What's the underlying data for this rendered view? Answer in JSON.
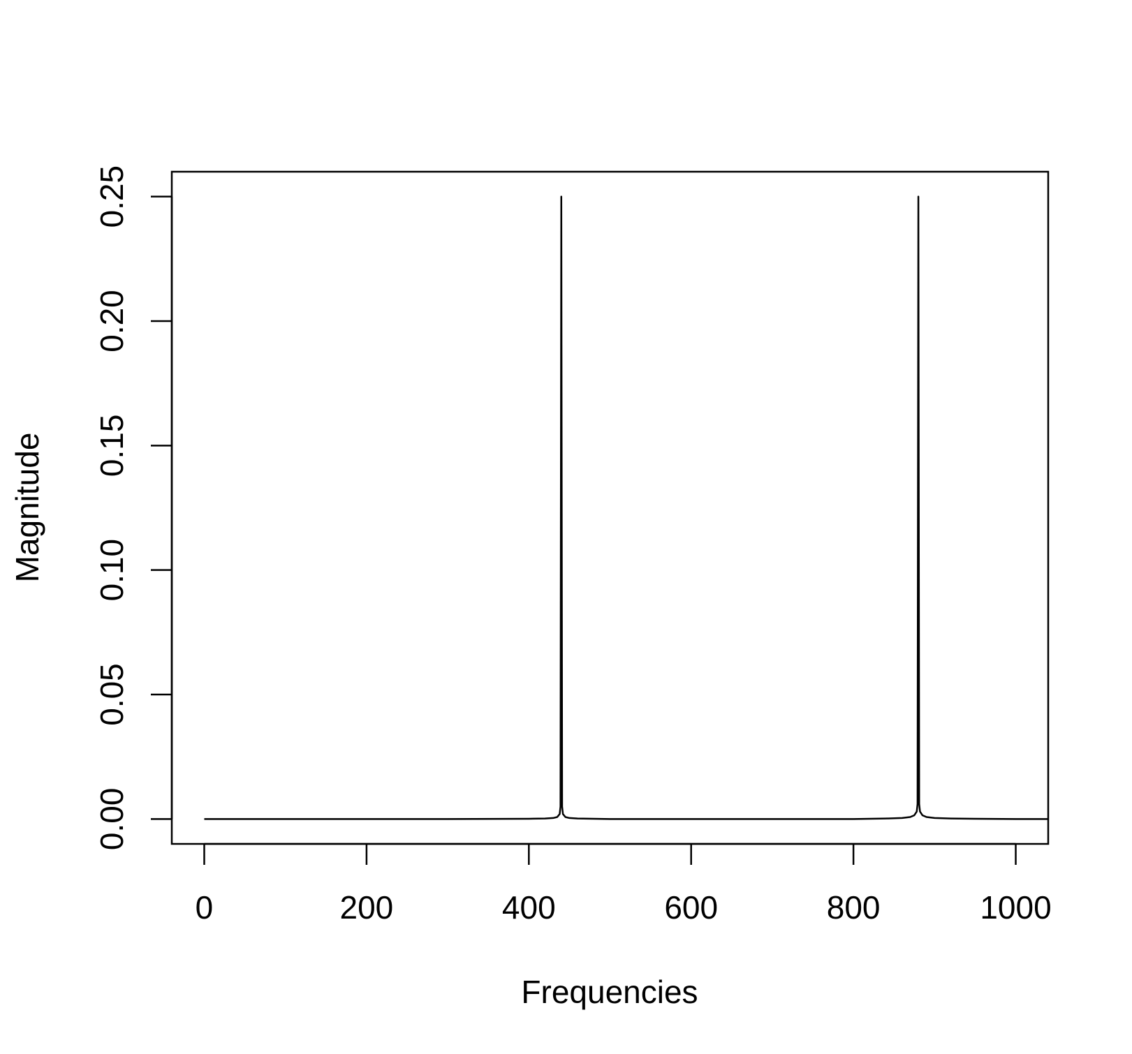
{
  "chart_data": {
    "type": "line",
    "title": "",
    "xlabel": "Frequencies",
    "ylabel": "Magnitude",
    "xlim": [
      -40,
      1040
    ],
    "ylim": [
      -0.01,
      0.26
    ],
    "xticks": [
      0,
      200,
      400,
      600,
      800,
      1000
    ],
    "xtick_labels": [
      "0",
      "200",
      "400",
      "600",
      "800",
      "1000"
    ],
    "yticks": [
      0.0,
      0.05,
      0.1,
      0.15,
      0.2,
      0.25
    ],
    "ytick_labels": [
      "0.00",
      "0.05",
      "0.10",
      "0.15",
      "0.20",
      "0.25"
    ],
    "grid": false,
    "legend": "none",
    "line_color": "#000000",
    "series": [
      {
        "name": "Magnitude",
        "x": [
          0,
          100,
          200,
          300,
          400,
          420,
          430,
          435,
          438,
          439,
          440,
          441,
          442,
          445,
          450,
          460,
          480,
          500,
          600,
          700,
          800,
          840,
          860,
          870,
          875,
          878,
          879,
          880,
          881,
          882,
          885,
          890,
          900,
          920,
          950,
          1000,
          1040
        ],
        "values": [
          0.0,
          0.0,
          0.0,
          0.0,
          0.0001,
          0.0002,
          0.0004,
          0.0008,
          0.002,
          0.005,
          0.25,
          0.005,
          0.002,
          0.0008,
          0.0004,
          0.0002,
          0.0001,
          0.0,
          0.0,
          0.0,
          0.0,
          0.0002,
          0.0004,
          0.0008,
          0.0015,
          0.003,
          0.006,
          0.25,
          0.006,
          0.003,
          0.0015,
          0.0008,
          0.0004,
          0.0002,
          0.0001,
          0.0,
          0.0
        ]
      }
    ]
  }
}
